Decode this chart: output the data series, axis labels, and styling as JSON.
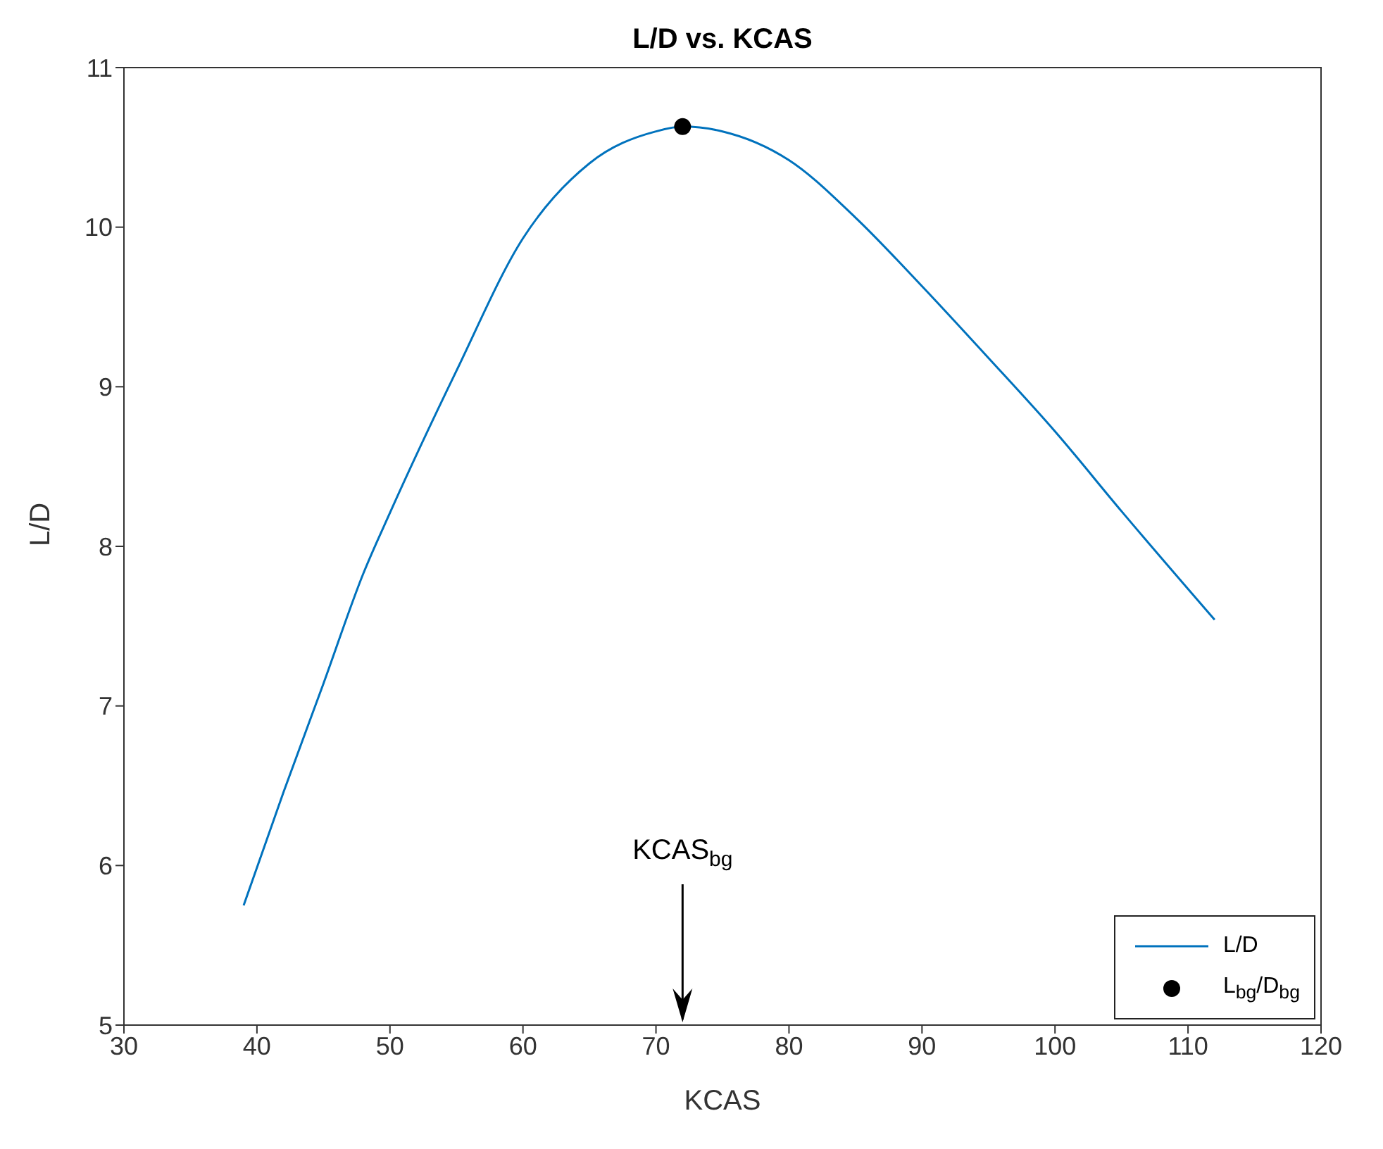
{
  "chart_data": {
    "type": "line",
    "title": "L/D vs. KCAS",
    "xlabel": "KCAS",
    "ylabel": "L/D",
    "xlim": [
      30,
      120
    ],
    "xticks": [
      30,
      40,
      50,
      60,
      70,
      80,
      90,
      100,
      110,
      120
    ],
    "ylim": [
      5,
      11
    ],
    "yticks": [
      5,
      6,
      7,
      8,
      9,
      10,
      11
    ],
    "grid": false,
    "legend": "bottom right",
    "line_style": "solid",
    "marker": "none",
    "series": [
      {
        "name": "L/D",
        "color": "#0072bd",
        "x": [
          39,
          42,
          45,
          48,
          50,
          55,
          60,
          65,
          70,
          72,
          75,
          80,
          85,
          90,
          95,
          100,
          105,
          112
        ],
        "values": [
          5.75,
          6.46,
          7.14,
          7.83,
          8.21,
          9.1,
          9.93,
          10.4,
          10.6,
          10.63,
          10.6,
          10.42,
          10.06,
          9.63,
          9.18,
          8.72,
          8.22,
          7.54
        ]
      },
      {
        "name": "L$_{bg}$/D$_{bg}$",
        "type": "scatter",
        "color": "#000000",
        "marker": "circle",
        "x": [
          72
        ],
        "values": [
          10.63
        ]
      }
    ],
    "annotations": [
      "KCAS$_{bg}$"
    ]
  }
}
